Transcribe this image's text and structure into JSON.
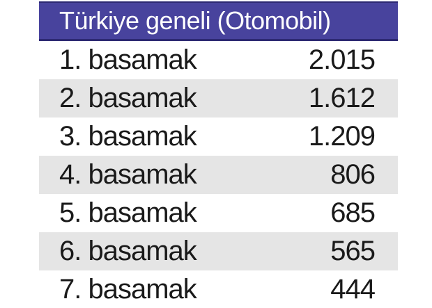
{
  "table": {
    "title": "Türkiye geneli (Otomobil)",
    "rows": [
      {
        "label": "1. basamak",
        "value": "2.015"
      },
      {
        "label": "2. basamak",
        "value": "1.612"
      },
      {
        "label": "3. basamak",
        "value": "1.209"
      },
      {
        "label": "4. basamak",
        "value": "806"
      },
      {
        "label": "5. basamak",
        "value": "685"
      },
      {
        "label": "6. basamak",
        "value": "565"
      },
      {
        "label": "7. basamak",
        "value": "444"
      }
    ]
  },
  "colors": {
    "header_bg": "#48439d",
    "header_border": "#2d2972",
    "header_text": "#ffffff",
    "row_alt_bg": "#e5e5e5",
    "row_text": "#1a1a1a",
    "page_bg": "#ffffff"
  },
  "chart_data": {
    "type": "table",
    "title": "Türkiye geneli (Otomobil)",
    "categories": [
      "1. basamak",
      "2. basamak",
      "3. basamak",
      "4. basamak",
      "5. basamak",
      "6. basamak",
      "7. basamak"
    ],
    "values": [
      2015,
      1612,
      1209,
      806,
      685,
      565,
      444
    ],
    "display_values": [
      "2.015",
      "1.612",
      "1.209",
      "806",
      "685",
      "565",
      "444"
    ],
    "layout_hints": {
      "striped_rows": true,
      "stripe_pattern": "odd rows white, even rows light gray",
      "value_alignment": "right",
      "header_style": "white text on indigo band with darker navy top/bottom borders"
    }
  }
}
